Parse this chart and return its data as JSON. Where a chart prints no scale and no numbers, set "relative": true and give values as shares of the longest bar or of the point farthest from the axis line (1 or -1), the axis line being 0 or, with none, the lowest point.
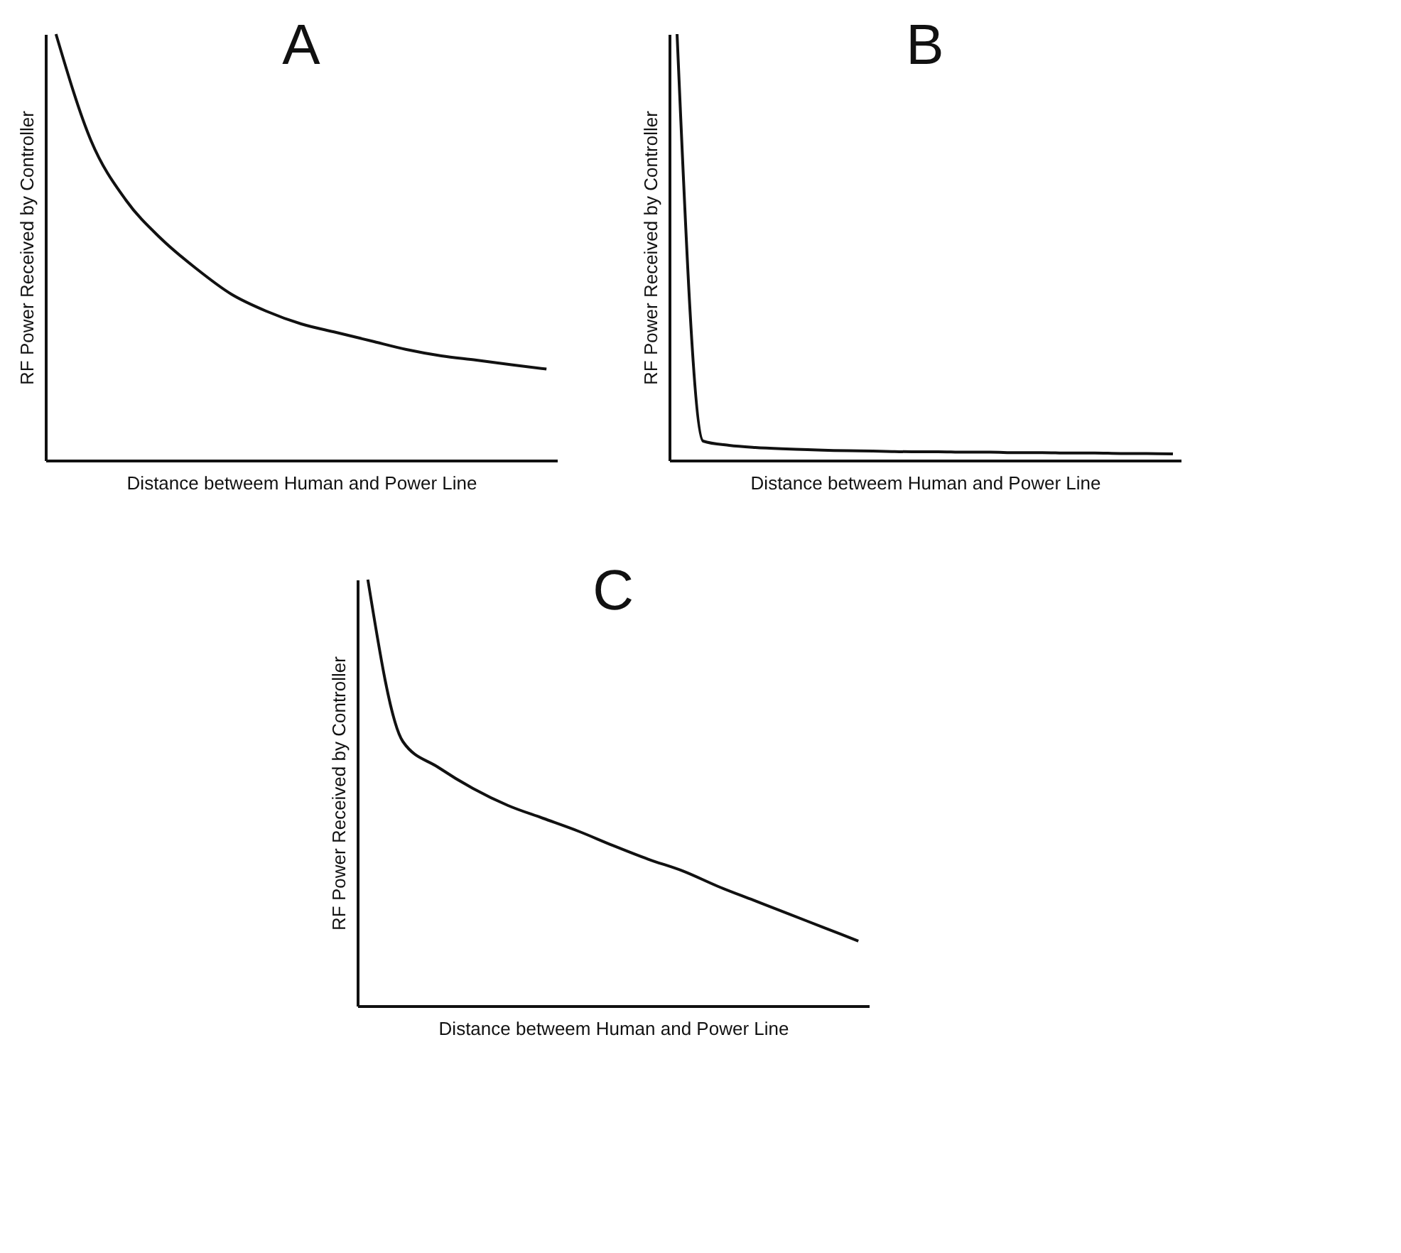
{
  "chart_data": [
    {
      "type": "line",
      "title": "A",
      "xlabel": "Distance betweem Human and Power Line",
      "ylabel": "RF Power Received by Controller",
      "relative": true,
      "color": "#111111",
      "categories": [
        null,
        null,
        null,
        null,
        null,
        null,
        null,
        null,
        null,
        null,
        null,
        null,
        null,
        null,
        null
      ],
      "values": [
        1.0,
        0.75,
        0.61,
        0.52,
        0.45,
        0.39,
        0.35,
        0.32,
        0.3,
        0.28,
        0.26,
        0.245,
        0.235,
        0.224,
        0.214
      ]
    },
    {
      "type": "line",
      "title": "B",
      "xlabel": "Distance betweem Human and Power Line",
      "ylabel": "RF Power Received by Controller",
      "relative": true,
      "color": "#111111",
      "categories": [
        null,
        null,
        null,
        null,
        null,
        null,
        null,
        null,
        null,
        null,
        null,
        null,
        null,
        null,
        null,
        null,
        null,
        null,
        null,
        null
      ],
      "values": [
        1.0,
        0.045,
        0.035,
        0.03,
        0.027,
        0.025,
        0.023,
        0.022,
        0.021,
        0.02,
        0.02,
        0.019,
        0.019,
        0.018,
        0.018,
        0.017,
        0.017,
        0.016,
        0.016,
        0.015
      ]
    },
    {
      "type": "line",
      "title": "C",
      "xlabel": "Distance betweem Human and Power Line",
      "ylabel": "RF Power Received by Controller",
      "relative": true,
      "color": "#111111",
      "categories": [
        null,
        null,
        null,
        null,
        null,
        null,
        null,
        null,
        null,
        null,
        null,
        null,
        null,
        null,
        null
      ],
      "values": [
        1.0,
        0.62,
        0.56,
        0.51,
        0.47,
        0.44,
        0.41,
        0.376,
        0.344,
        0.316,
        0.28,
        0.248,
        0.216,
        0.184,
        0.152
      ]
    }
  ]
}
